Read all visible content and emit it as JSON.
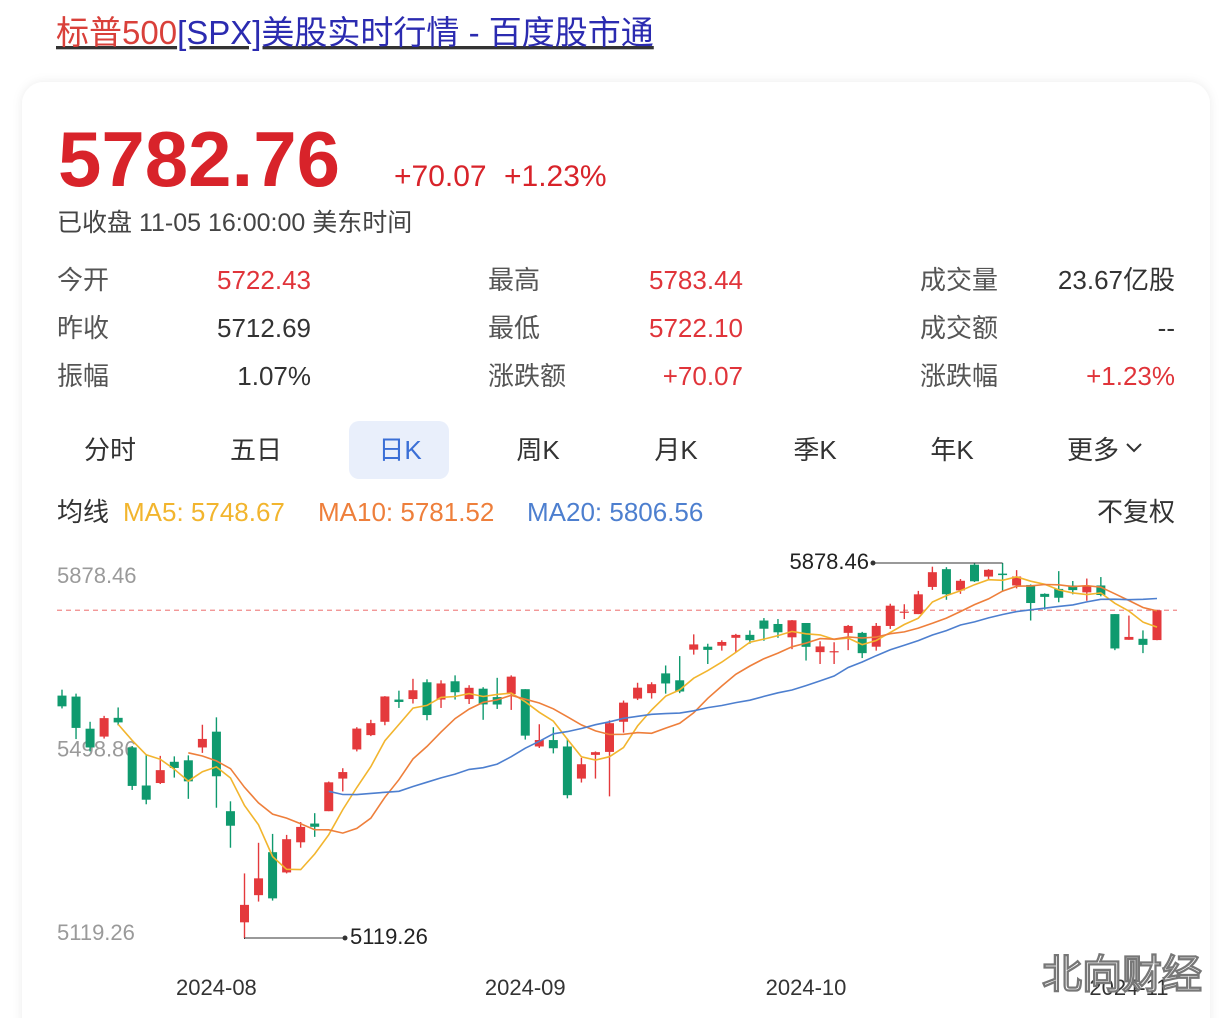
{
  "header": {
    "title_highlight": "标普500",
    "title_rest": "[SPX]美股实时行情 - 百度股市通"
  },
  "quote": {
    "price": "5782.76",
    "change": "+70.07",
    "change_pct": "+1.23%",
    "status": "已收盘 11-05 16:00:00 美东时间"
  },
  "stats": [
    [
      {
        "label": "今开",
        "value": "5722.43",
        "color": "#e0343a"
      },
      {
        "label": "最高",
        "value": "5783.44",
        "color": "#e0343a"
      },
      {
        "label": "成交量",
        "value": "23.67亿股",
        "color": "#333333"
      }
    ],
    [
      {
        "label": "昨收",
        "value": "5712.69",
        "color": "#333333"
      },
      {
        "label": "最低",
        "value": "5722.10",
        "color": "#e0343a"
      },
      {
        "label": "成交额",
        "value": "--",
        "color": "#333333"
      }
    ],
    [
      {
        "label": "振幅",
        "value": "1.07%",
        "color": "#333333"
      },
      {
        "label": "涨跌额",
        "value": "+70.07",
        "color": "#e0343a"
      },
      {
        "label": "涨跌幅",
        "value": "+1.23%",
        "color": "#e0343a"
      }
    ]
  ],
  "tabs": [
    "分时",
    "五日",
    "日K",
    "周K",
    "月K",
    "季K",
    "年K",
    "更多"
  ],
  "active_tab": "日K",
  "ma_title": "均线",
  "adjust": "不复权",
  "watermark": "北向财经",
  "chart_data": {
    "type": "candlestick",
    "categories": [
      null,
      null,
      null,
      null,
      null,
      null,
      null,
      null,
      null,
      null,
      null,
      "2024-08",
      null,
      null,
      null,
      null,
      null,
      null,
      null,
      null,
      null,
      null,
      null,
      null,
      null,
      null,
      null,
      null,
      null,
      null,
      null,
      null,
      null,
      "2024-09",
      null,
      null,
      null,
      null,
      null,
      null,
      null,
      null,
      null,
      null,
      null,
      null,
      null,
      null,
      null,
      null,
      null,
      null,
      null,
      "2024-10",
      null,
      null,
      null,
      null,
      null,
      null,
      null,
      null,
      null,
      null,
      null,
      null,
      null,
      null,
      null,
      null,
      null,
      null,
      null,
      null,
      null,
      null,
      "2024-11",
      null,
      null
    ],
    "open": [
      5610,
      5608,
      5543,
      5527,
      5565,
      5505,
      5428,
      5433,
      5476,
      5479,
      5505,
      5537,
      5376,
      5151,
      5206,
      5293,
      5252,
      5313,
      5351,
      5376,
      5442,
      5501,
      5530,
      5557,
      5602,
      5603,
      5637,
      5602,
      5639,
      5603,
      5624,
      5607,
      5613,
      5623,
      5507,
      5520,
      5507,
      5442,
      5490,
      5496,
      5557,
      5604,
      5615,
      5655,
      5641,
      5703,
      5709,
      5711,
      5727,
      5733,
      5762,
      5755,
      5728,
      5757,
      5698,
      5698,
      5737,
      5737,
      5709,
      5751,
      5779,
      5775,
      5830,
      5866,
      5823,
      5875,
      5851,
      5857,
      5833,
      5834,
      5816,
      5826,
      5833,
      5819,
      5833,
      5775,
      5723,
      5725,
      5722.43
    ],
    "high": [
      5622,
      5614,
      5557,
      5569,
      5586,
      5508,
      5491,
      5488,
      5487,
      5489,
      5551,
      5566,
      5396,
      5250,
      5312,
      5330,
      5328,
      5354,
      5372,
      5436,
      5463,
      5546,
      5561,
      5609,
      5620,
      5644,
      5643,
      5641,
      5651,
      5631,
      5627,
      5646,
      5651,
      5623,
      5552,
      5546,
      5523,
      5484,
      5497,
      5560,
      5600,
      5636,
      5637,
      5671,
      5690,
      5734,
      5715,
      5722,
      5735,
      5742,
      5767,
      5765,
      5763,
      5757,
      5720,
      5718,
      5753,
      5739,
      5757,
      5796,
      5795,
      5822,
      5871,
      5870,
      5846,
      5878,
      5866,
      5878.46,
      5864,
      5835,
      5817,
      5862,
      5842,
      5847,
      5850,
      5775,
      5772,
      5742,
      5783.44
    ],
    "low": [
      5584,
      5522,
      5497,
      5523,
      5550,
      5419,
      5390,
      5431,
      5444,
      5401,
      5494,
      5383,
      5302,
      5119.26,
      5193,
      5195,
      5250,
      5302,
      5324,
      5376,
      5416,
      5497,
      5528,
      5550,
      5585,
      5594,
      5560,
      5585,
      5602,
      5593,
      5561,
      5583,
      5581,
      5521,
      5504,
      5493,
      5402,
      5434,
      5442,
      5406,
      5535,
      5601,
      5604,
      5614,
      5615,
      5693,
      5674,
      5701,
      5698,
      5715,
      5721,
      5727,
      5704,
      5681,
      5674,
      5674,
      5702,
      5686,
      5701,
      5745,
      5765,
      5775,
      5824,
      5804,
      5816,
      5840,
      5846,
      5822,
      5827,
      5762,
      5784,
      5799,
      5815,
      5802,
      5811,
      5702,
      5723,
      5696,
      5722.1
    ],
    "close": [
      5588.27,
      5544.59,
      5505,
      5564.41,
      5555.74,
      5427.13,
      5399.22,
      5459.1,
      5463.54,
      5436.44,
      5522.3,
      5446.68,
      5346.56,
      5186.33,
      5240.03,
      5199.5,
      5319.31,
      5344.16,
      5344.39,
      5434.43,
      5455.21,
      5543.22,
      5554.25,
      5608.25,
      5597.12,
      5620.85,
      5570.64,
      5634.61,
      5616.84,
      5625.8,
      5592.18,
      5591.96,
      5648.4,
      5528.93,
      5520.07,
      5503.41,
      5408.42,
      5471.05,
      5495.52,
      5554.13,
      5595.76,
      5626.02,
      5633.09,
      5634.58,
      5618.26,
      5713.64,
      5702.55,
      5718.57,
      5732.93,
      5722.26,
      5745.37,
      5738.17,
      5762.48,
      5708.75,
      5709.54,
      5699.94,
      5751.07,
      5695.94,
      5751.13,
      5792.04,
      5780.05,
      5815.03,
      5859.85,
      5815.26,
      5842.47,
      5841.47,
      5864.67,
      5853.98,
      5851.2,
      5797.42,
      5809.86,
      5808.12,
      5823.52,
      5832.92,
      5813.67,
      5705.45,
      5728.8,
      5712.69,
      5782.76
    ],
    "up_color": "#e4393c",
    "down_color": "#0f9a6e",
    "series": [
      {
        "name": "MA5: 5748.67",
        "color": "#f2b52e",
        "values": [
          null,
          null,
          null,
          null,
          5551.6,
          5519.4,
          5490.2,
          5481,
          5461,
          5437,
          5456,
          5465.6,
          5443.2,
          5387.6,
          5348.4,
          5284,
          5258.4,
          5257.8,
          5289.4,
          5328.2,
          5379.2,
          5424,
          5466,
          5518.8,
          5551.4,
          5584.6,
          5590.2,
          5606.4,
          5608.2,
          5614,
          5608.2,
          5612.4,
          5615,
          5597.4,
          5576.2,
          5558.4,
          5521.6,
          5486.2,
          5479.6,
          5486.4,
          5505,
          5548.6,
          5581,
          5608.8,
          5621.6,
          5645.2,
          5660.6,
          5677.8,
          5697.4,
          5718.2,
          5724.4,
          5731.4,
          5740,
          5735.2,
          5732.8,
          5723.8,
          5726.4,
          5713.2,
          5721.6,
          5738,
          5754,
          5766.8,
          5799.6,
          5812.4,
          5822.4,
          5834.6,
          5844.6,
          5843.4,
          5850.6,
          5841.6,
          5835.4,
          5824,
          5818,
          5814.4,
          5817.8,
          5796.8,
          5781,
          5758.8,
          5748.67
        ]
      },
      {
        "name": "MA10: 5781.52",
        "color": "#ee7f3b",
        "values": [
          null,
          null,
          null,
          null,
          null,
          null,
          null,
          null,
          null,
          5494.3,
          5487.7,
          5477.9,
          5462.1,
          5424.3,
          5392.7,
          5370,
          5362,
          5350.5,
          5338.5,
          5338.3,
          5331.6,
          5341.2,
          5361.9,
          5404.1,
          5439.8,
          5481.9,
          5507.1,
          5536.2,
          5563.5,
          5582.7,
          5596.4,
          5601.3,
          5610.7,
          5602.8,
          5595.1,
          5583.3,
          5567,
          5550.6,
          5538.5,
          5531.3,
          5531.7,
          5535.1,
          5533.6,
          5544.2,
          5554,
          5575.1,
          5604.6,
          5629.4,
          5653.1,
          5669.9,
          5684.8,
          5696,
          5708.9,
          5716.3,
          5725.5,
          5724.1,
          5728.9,
          5726.6,
          5728.4,
          5735.4,
          5738.9,
          5746.6,
          5756.4,
          5767,
          5780.2,
          5794.3,
          5805.7,
          5821.5,
          5831.5,
          5832,
          5835,
          5834.3,
          5830.7,
          5832.5,
          5829.7,
          5816.1,
          5802.5,
          5788.4,
          5781.52
        ]
      },
      {
        "name": "MA20: 5806.56",
        "color": "#4d7fcf",
        "values": [
          null,
          null,
          null,
          null,
          null,
          null,
          null,
          null,
          null,
          null,
          null,
          null,
          null,
          null,
          null,
          null,
          null,
          null,
          null,
          5416.3,
          5409.7,
          5409.6,
          5412,
          5414.2,
          5416.3,
          5426,
          5434.6,
          5443.4,
          5451,
          5460.5,
          5464,
          5471.3,
          5486.3,
          5503.5,
          5517.5,
          5532.6,
          5537.1,
          5543.4,
          5551,
          5557,
          5564.1,
          5568.2,
          5572.2,
          5573.5,
          5574.6,
          5579.2,
          5585.8,
          5590,
          5595.8,
          5600.6,
          5608.3,
          5615.6,
          5621.3,
          5630.3,
          5639.8,
          5649.6,
          5666.8,
          5678,
          5690.8,
          5702.7,
          5711.9,
          5721.3,
          5732.7,
          5741.7,
          5752.9,
          5759.2,
          5767.3,
          5774.1,
          5780,
          5783.7,
          5787,
          5790.5,
          5793.6,
          5799.8,
          5805,
          5805.2,
          5804.1,
          5805,
          5806.56
        ]
      }
    ],
    "ylim": [
      5119.26,
      5878.46
    ],
    "yticks": [
      5119.26,
      5498.86,
      5878.46
    ],
    "max_label": 5878.46,
    "min_label": 5119.26
  }
}
